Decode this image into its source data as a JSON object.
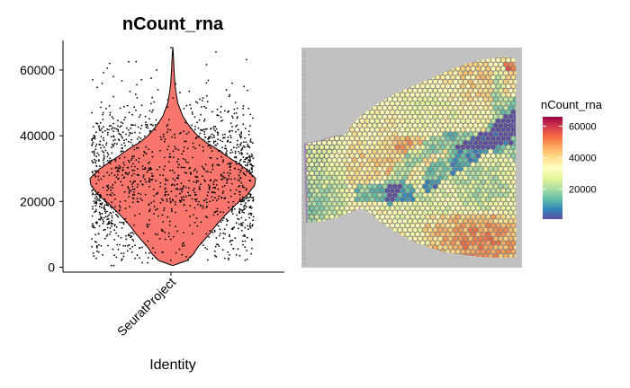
{
  "chart_data": [
    {
      "type": "violin",
      "title": "nCount_rna",
      "xlabel": "Identity",
      "ylabel": "",
      "categories": [
        "SeuratProject"
      ],
      "ylim": [
        -1500,
        69000
      ],
      "yticks": [
        0,
        20000,
        40000,
        60000
      ],
      "ytick_labels": [
        "0",
        "20000",
        "40000",
        "60000"
      ],
      "fill_color": "#F8766D",
      "point_color": "#000000",
      "jitter_points": true,
      "distribution": {
        "min": 400,
        "max": 67000,
        "median": 26000,
        "mode": 26000,
        "density_profile": [
          [
            500,
            0.0
          ],
          [
            2000,
            0.17
          ],
          [
            4000,
            0.25
          ],
          [
            6000,
            0.3
          ],
          [
            8000,
            0.37
          ],
          [
            10000,
            0.44
          ],
          [
            13000,
            0.53
          ],
          [
            16000,
            0.64
          ],
          [
            19000,
            0.76
          ],
          [
            22000,
            0.9
          ],
          [
            25000,
            0.99
          ],
          [
            27000,
            1.0
          ],
          [
            30000,
            0.88
          ],
          [
            33000,
            0.7
          ],
          [
            36000,
            0.53
          ],
          [
            38000,
            0.4
          ],
          [
            40000,
            0.3
          ],
          [
            42000,
            0.23
          ],
          [
            44000,
            0.17
          ],
          [
            46000,
            0.12
          ],
          [
            48000,
            0.09
          ],
          [
            50000,
            0.06
          ],
          [
            53000,
            0.04
          ],
          [
            56000,
            0.025
          ],
          [
            60000,
            0.015
          ],
          [
            64000,
            0.008
          ],
          [
            67000,
            0.0
          ]
        ]
      },
      "grid": false
    },
    {
      "type": "heatmap",
      "subtype": "spatial",
      "legend": {
        "title": "nCount_rna",
        "ticks": [
          20000,
          40000,
          60000
        ],
        "tick_labels": [
          "20000",
          "40000",
          "60000"
        ],
        "range": [
          1000,
          66000
        ],
        "colors": [
          "#5E4FA2",
          "#3288BD",
          "#66C2A5",
          "#ABDDA4",
          "#E6F598",
          "#FFFFBF",
          "#FEE08B",
          "#FDAE61",
          "#F46D43",
          "#D53E4F",
          "#9E0142"
        ]
      },
      "background_color": "#BDBFBE"
    }
  ]
}
